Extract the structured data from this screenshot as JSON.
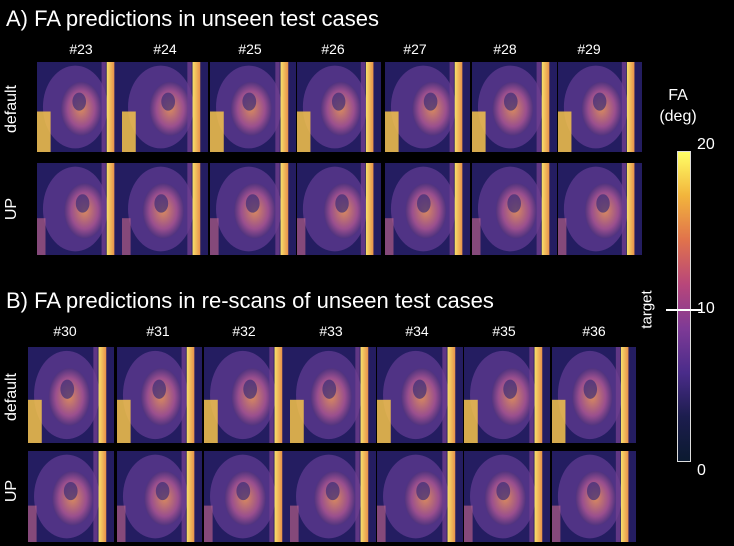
{
  "panel_a": {
    "title": "A)  FA predictions in unseen test cases",
    "cases": [
      "#23",
      "#24",
      "#25",
      "#26",
      "#27",
      "#28",
      "#29"
    ],
    "rows": [
      "default",
      "UP"
    ]
  },
  "panel_b": {
    "title": "B)  FA predictions in re-scans of unseen test cases",
    "cases": [
      "#30",
      "#31",
      "#32",
      "#33",
      "#34",
      "#35",
      "#36"
    ],
    "rows": [
      "default",
      "UP"
    ]
  },
  "colorbar": {
    "label_line1": "FA",
    "label_line2": "(deg)",
    "side_label": "target",
    "ticks": [
      "20",
      "10",
      "0"
    ],
    "range": [
      0,
      20
    ],
    "target_value": 10,
    "colors": [
      "#ffff66",
      "#f2b43c",
      "#e0724c",
      "#b8467a",
      "#7e3a96",
      "#4a2c8a",
      "#1c1d4e",
      "#0b1a30"
    ]
  }
}
